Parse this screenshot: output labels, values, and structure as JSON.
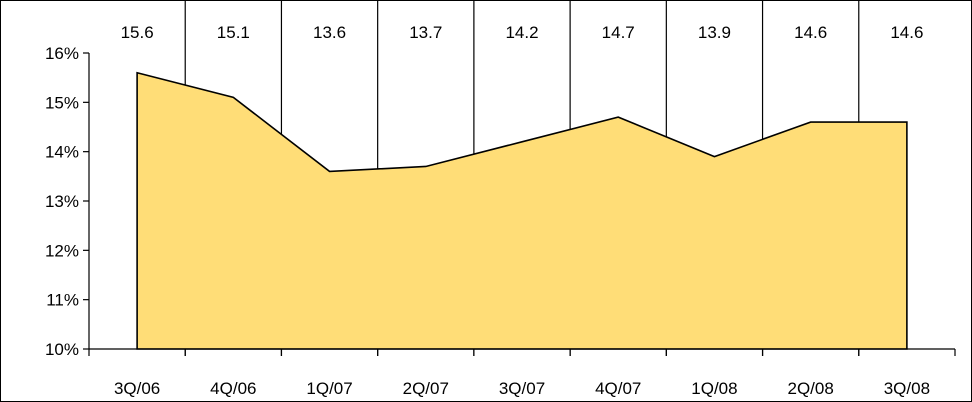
{
  "chart_data": {
    "type": "area",
    "title": "",
    "xlabel": "",
    "ylabel": "",
    "categories": [
      "3Q/06",
      "4Q/06",
      "1Q/07",
      "2Q/07",
      "3Q/07",
      "4Q/07",
      "1Q/08",
      "2Q/08",
      "3Q/08"
    ],
    "values": [
      15.6,
      15.1,
      13.6,
      13.7,
      14.2,
      14.7,
      13.9,
      14.6,
      14.6
    ],
    "value_labels": [
      "15.6",
      "15.1",
      "13.6",
      "13.7",
      "14.2",
      "14.7",
      "13.9",
      "14.6",
      "14.6"
    ],
    "y_unit": "%",
    "ylim": [
      10,
      16
    ],
    "yticks": [
      10,
      11,
      12,
      13,
      14,
      15,
      16
    ],
    "ytick_labels": [
      "10%",
      "11%",
      "12%",
      "13%",
      "14%",
      "15%",
      "16%"
    ],
    "grid": false,
    "legend": "none",
    "value_labels_position": "top",
    "colors": {
      "fill": "#FFDD77",
      "stroke": "#000000"
    }
  }
}
